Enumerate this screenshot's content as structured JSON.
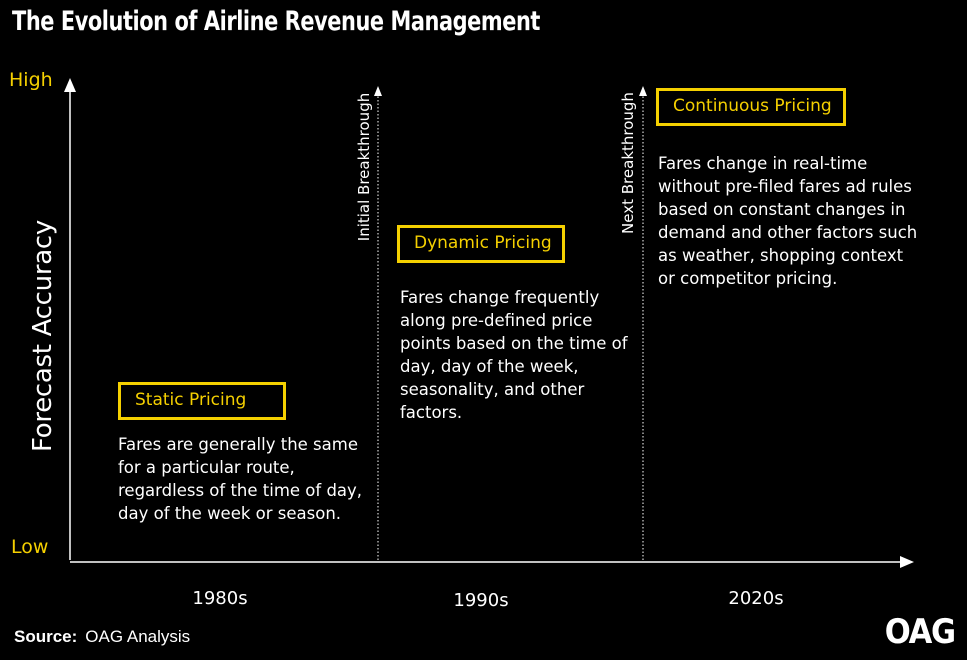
{
  "title": "The Evolution of Airline Revenue Management",
  "y_axis": {
    "label": "Forecast Accuracy",
    "high": "High",
    "low": "Low"
  },
  "breakthroughs": [
    "Initial Breakthrough",
    "Next Breakthrough"
  ],
  "stages": [
    {
      "name": "Static Pricing",
      "decade": "1980s",
      "description": "Fares are generally the same for a particular route, regardless of the time of day, day of the week or season."
    },
    {
      "name": "Dynamic Pricing",
      "decade": "1990s",
      "description": "Fares change frequently along pre-defined price points based on the time of day, day of the week, seasonality, and other factors."
    },
    {
      "name": "Continuous Pricing",
      "decade": "2020s",
      "description": "Fares change in real-time without pre-filed fares ad rules based on constant changes in demand and other factors such as weather, shopping context or competitor pricing."
    }
  ],
  "source": {
    "label": "Source:",
    "text": "OAG Analysis"
  },
  "logo": "OAG",
  "colors": {
    "accent": "#f5d000",
    "background": "#000000",
    "text": "#ffffff"
  }
}
